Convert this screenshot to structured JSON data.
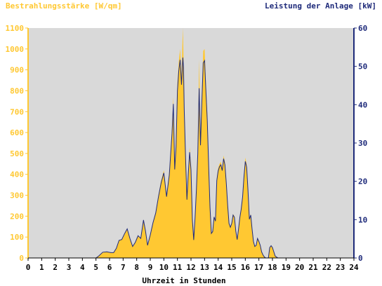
{
  "chart_data": {
    "type": "area",
    "left_axis_label": "Bestrahlungsstärke [W/qm]",
    "right_axis_label": "Leistung der Anlage [kW]",
    "xlabel": "Uhrzeit in Stunden",
    "x_ticks": [
      "0",
      "1",
      "2",
      "3",
      "4",
      "5",
      "6",
      "7",
      "8",
      "9",
      "10",
      "11",
      "12",
      "13",
      "14",
      "15",
      "16",
      "17",
      "18",
      "19",
      "20",
      "21",
      "22",
      "23",
      "24"
    ],
    "left_ticks": [
      "0",
      "100",
      "200",
      "300",
      "400",
      "500",
      "600",
      "700",
      "800",
      "900",
      "1000",
      "1100"
    ],
    "right_ticks": [
      "0",
      "10",
      "20",
      "30",
      "40",
      "50",
      "60"
    ],
    "xlim": [
      0,
      24
    ],
    "ylim_left": [
      0,
      1100
    ],
    "ylim_right": [
      0,
      60
    ],
    "grid": false,
    "colors": {
      "plot_bg": "#d9d9d9",
      "irradiance": "#ffc832",
      "power": "#1e2a7a",
      "left_label": "#ffc832",
      "right_label": "#1e2a7a"
    },
    "series": [
      {
        "name": "Bestrahlungsstärke [W/qm]",
        "axis": "left",
        "x": [
          0,
          5.0,
          5.2,
          5.5,
          5.8,
          6.1,
          6.3,
          6.5,
          6.7,
          6.9,
          7.1,
          7.3,
          7.5,
          7.7,
          7.9,
          8.1,
          8.3,
          8.5,
          8.65,
          8.8,
          9.0,
          9.2,
          9.4,
          9.6,
          9.8,
          10.0,
          10.2,
          10.4,
          10.6,
          10.7,
          10.8,
          10.9,
          11.0,
          11.1,
          11.2,
          11.3,
          11.4,
          11.45,
          11.5,
          11.6,
          11.7,
          11.8,
          11.9,
          12.0,
          12.1,
          12.2,
          12.3,
          12.4,
          12.5,
          12.6,
          12.7,
          12.8,
          12.9,
          13.0,
          13.1,
          13.2,
          13.3,
          13.4,
          13.5,
          13.6,
          13.7,
          13.8,
          13.9,
          14.0,
          14.1,
          14.2,
          14.3,
          14.4,
          14.5,
          14.6,
          14.7,
          14.8,
          14.9,
          15.0,
          15.1,
          15.2,
          15.3,
          15.4,
          15.5,
          15.6,
          15.7,
          15.8,
          15.9,
          16.0,
          16.1,
          16.2,
          16.3,
          16.4,
          16.5,
          16.6,
          16.7,
          16.8,
          16.9,
          17.0,
          17.1,
          17.2,
          17.3,
          17.4,
          17.5,
          17.6,
          17.7,
          17.8,
          17.9,
          18.0,
          18.1,
          18.2,
          18.4,
          18.6,
          18.8,
          19.0,
          19.1,
          19.2,
          19.3,
          19.4,
          19.5,
          19.6,
          19.7,
          19.8,
          19.9,
          20.0,
          20.2,
          24
        ],
        "values": [
          0,
          0,
          10,
          25,
          30,
          25,
          25,
          45,
          85,
          90,
          115,
          140,
          95,
          55,
          75,
          105,
          95,
          180,
          130,
          60,
          110,
          170,
          220,
          300,
          370,
          420,
          300,
          410,
          620,
          770,
          440,
          560,
          840,
          940,
          1000,
          870,
          1100,
          960,
          750,
          500,
          290,
          420,
          530,
          440,
          190,
          90,
          200,
          340,
          520,
          950,
          560,
          790,
          990,
          1000,
          840,
          690,
          460,
          250,
          120,
          130,
          200,
          180,
          380,
          430,
          450,
          460,
          430,
          490,
          460,
          370,
          260,
          170,
          150,
          170,
          210,
          200,
          130,
          90,
          140,
          200,
          240,
          300,
          400,
          480,
          450,
          330,
          190,
          210,
          140,
          80,
          55,
          60,
          95,
          80,
          60,
          30,
          15,
          5,
          0,
          0,
          0,
          50,
          60,
          50,
          30,
          10,
          0,
          0,
          0,
          0,
          0,
          0,
          0,
          0,
          0,
          0,
          0,
          0,
          0,
          0,
          0,
          0
        ]
      },
      {
        "name": "Leistung der Anlage [kW]",
        "axis": "right",
        "x": [
          0,
          5.0,
          5.2,
          5.5,
          5.8,
          6.1,
          6.3,
          6.5,
          6.7,
          6.9,
          7.1,
          7.3,
          7.5,
          7.7,
          7.9,
          8.1,
          8.3,
          8.5,
          8.65,
          8.8,
          9.0,
          9.2,
          9.4,
          9.6,
          9.8,
          10.0,
          10.2,
          10.4,
          10.6,
          10.7,
          10.8,
          10.9,
          11.0,
          11.1,
          11.2,
          11.3,
          11.4,
          11.45,
          11.5,
          11.6,
          11.7,
          11.8,
          11.9,
          12.0,
          12.1,
          12.2,
          12.3,
          12.4,
          12.5,
          12.6,
          12.7,
          12.8,
          12.9,
          13.0,
          13.1,
          13.2,
          13.3,
          13.4,
          13.5,
          13.6,
          13.7,
          13.8,
          13.9,
          14.0,
          14.1,
          14.2,
          14.3,
          14.4,
          14.5,
          14.6,
          14.7,
          14.8,
          14.9,
          15.0,
          15.1,
          15.2,
          15.3,
          15.4,
          15.5,
          15.6,
          15.7,
          15.8,
          15.9,
          16.0,
          16.1,
          16.2,
          16.3,
          16.4,
          16.5,
          16.6,
          16.7,
          16.8,
          16.9,
          17.0,
          17.1,
          17.2,
          17.3,
          17.4,
          17.5,
          17.6,
          17.7,
          17.8,
          17.9,
          18.0,
          18.1,
          18.2,
          18.4,
          18.6,
          18.8,
          19.0,
          19.1,
          19.2,
          19.3,
          19.4,
          19.5,
          19.6,
          19.7,
          19.8,
          19.9,
          20.0,
          20.2,
          24
        ],
        "values": [
          0,
          0,
          0.5,
          1.5,
          1.6,
          1.4,
          1.4,
          2.5,
          4.6,
          4.8,
          6.3,
          7.6,
          5.1,
          3.0,
          4.1,
          5.8,
          5.1,
          9.9,
          7.0,
          3.3,
          6.0,
          9.2,
          11.7,
          15.9,
          19.6,
          22.2,
          16.0,
          21.6,
          32.4,
          40.2,
          23.1,
          29.1,
          43.6,
          48.8,
          51.7,
          45.2,
          52.3,
          49.6,
          38.9,
          26.1,
          15.2,
          22.0,
          27.6,
          23.0,
          10.0,
          4.7,
          10.6,
          17.9,
          27.2,
          44.3,
          29.4,
          40.8,
          50.9,
          51.5,
          43.4,
          35.8,
          24.1,
          13.2,
          6.4,
          6.9,
          10.7,
          9.6,
          20.2,
          22.7,
          23.8,
          24.3,
          22.8,
          25.9,
          24.3,
          19.5,
          13.8,
          9.0,
          8.0,
          9.0,
          11.2,
          10.6,
          7.0,
          4.8,
          7.5,
          10.6,
          12.8,
          15.9,
          21.1,
          25.2,
          23.7,
          17.5,
          10.1,
          11.2,
          7.5,
          4.3,
          3.0,
          3.3,
          5.1,
          4.3,
          3.3,
          1.6,
          0.8,
          0.3,
          0,
          0,
          0,
          2.7,
          3.2,
          2.7,
          1.6,
          0.5,
          0,
          0,
          0,
          0,
          0,
          0,
          0,
          0,
          0,
          0,
          0,
          0,
          0,
          0,
          0,
          0
        ]
      }
    ]
  }
}
